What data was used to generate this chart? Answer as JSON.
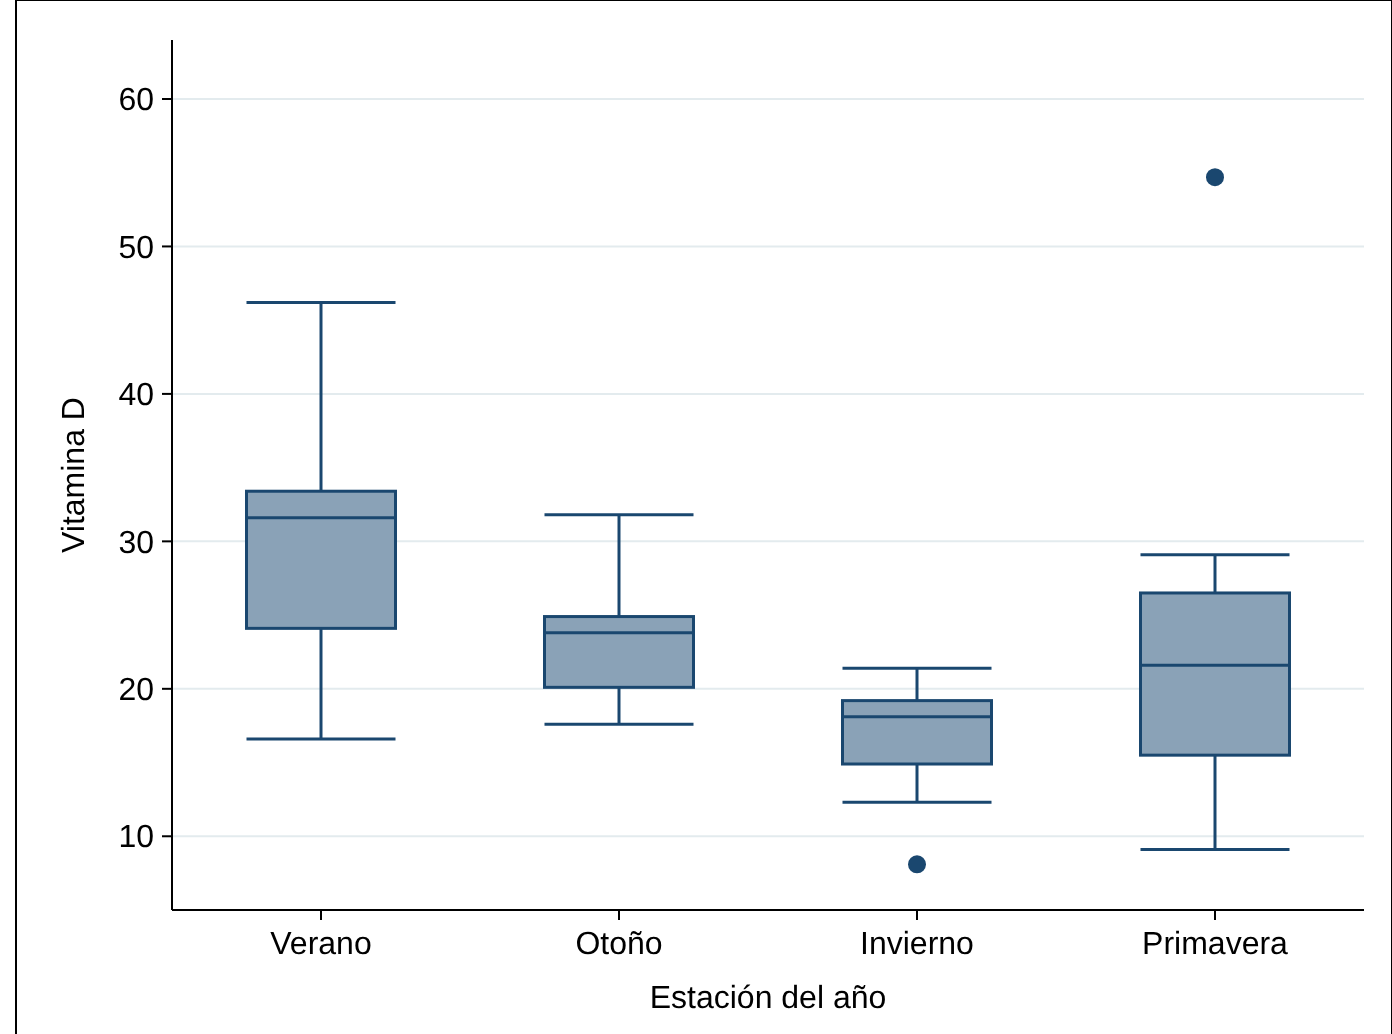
{
  "chart_data": {
    "type": "box",
    "xlabel": "Estación del año",
    "ylabel": "Vitamina D",
    "categories": [
      "Verano",
      "Otoño",
      "Invierno",
      "Primavera"
    ],
    "boxes": [
      {
        "low": 16.6,
        "q1": 24.1,
        "median": 31.6,
        "q3": 33.4,
        "high": 46.2
      },
      {
        "low": 17.6,
        "q1": 20.1,
        "median": 23.8,
        "q3": 24.9,
        "high": 31.8
      },
      {
        "low": 12.3,
        "q1": 14.9,
        "median": 18.1,
        "q3": 19.2,
        "high": 21.4,
        "outliers": [
          8.1
        ]
      },
      {
        "low": 9.1,
        "q1": 15.5,
        "median": 21.6,
        "q3": 26.5,
        "high": 29.1,
        "outliers": [
          54.7
        ]
      }
    ],
    "color": "#8aa2b7",
    "ylim": [
      5,
      64
    ],
    "yticks": [
      10,
      20,
      30,
      40,
      50,
      60
    ],
    "grid": "y"
  }
}
